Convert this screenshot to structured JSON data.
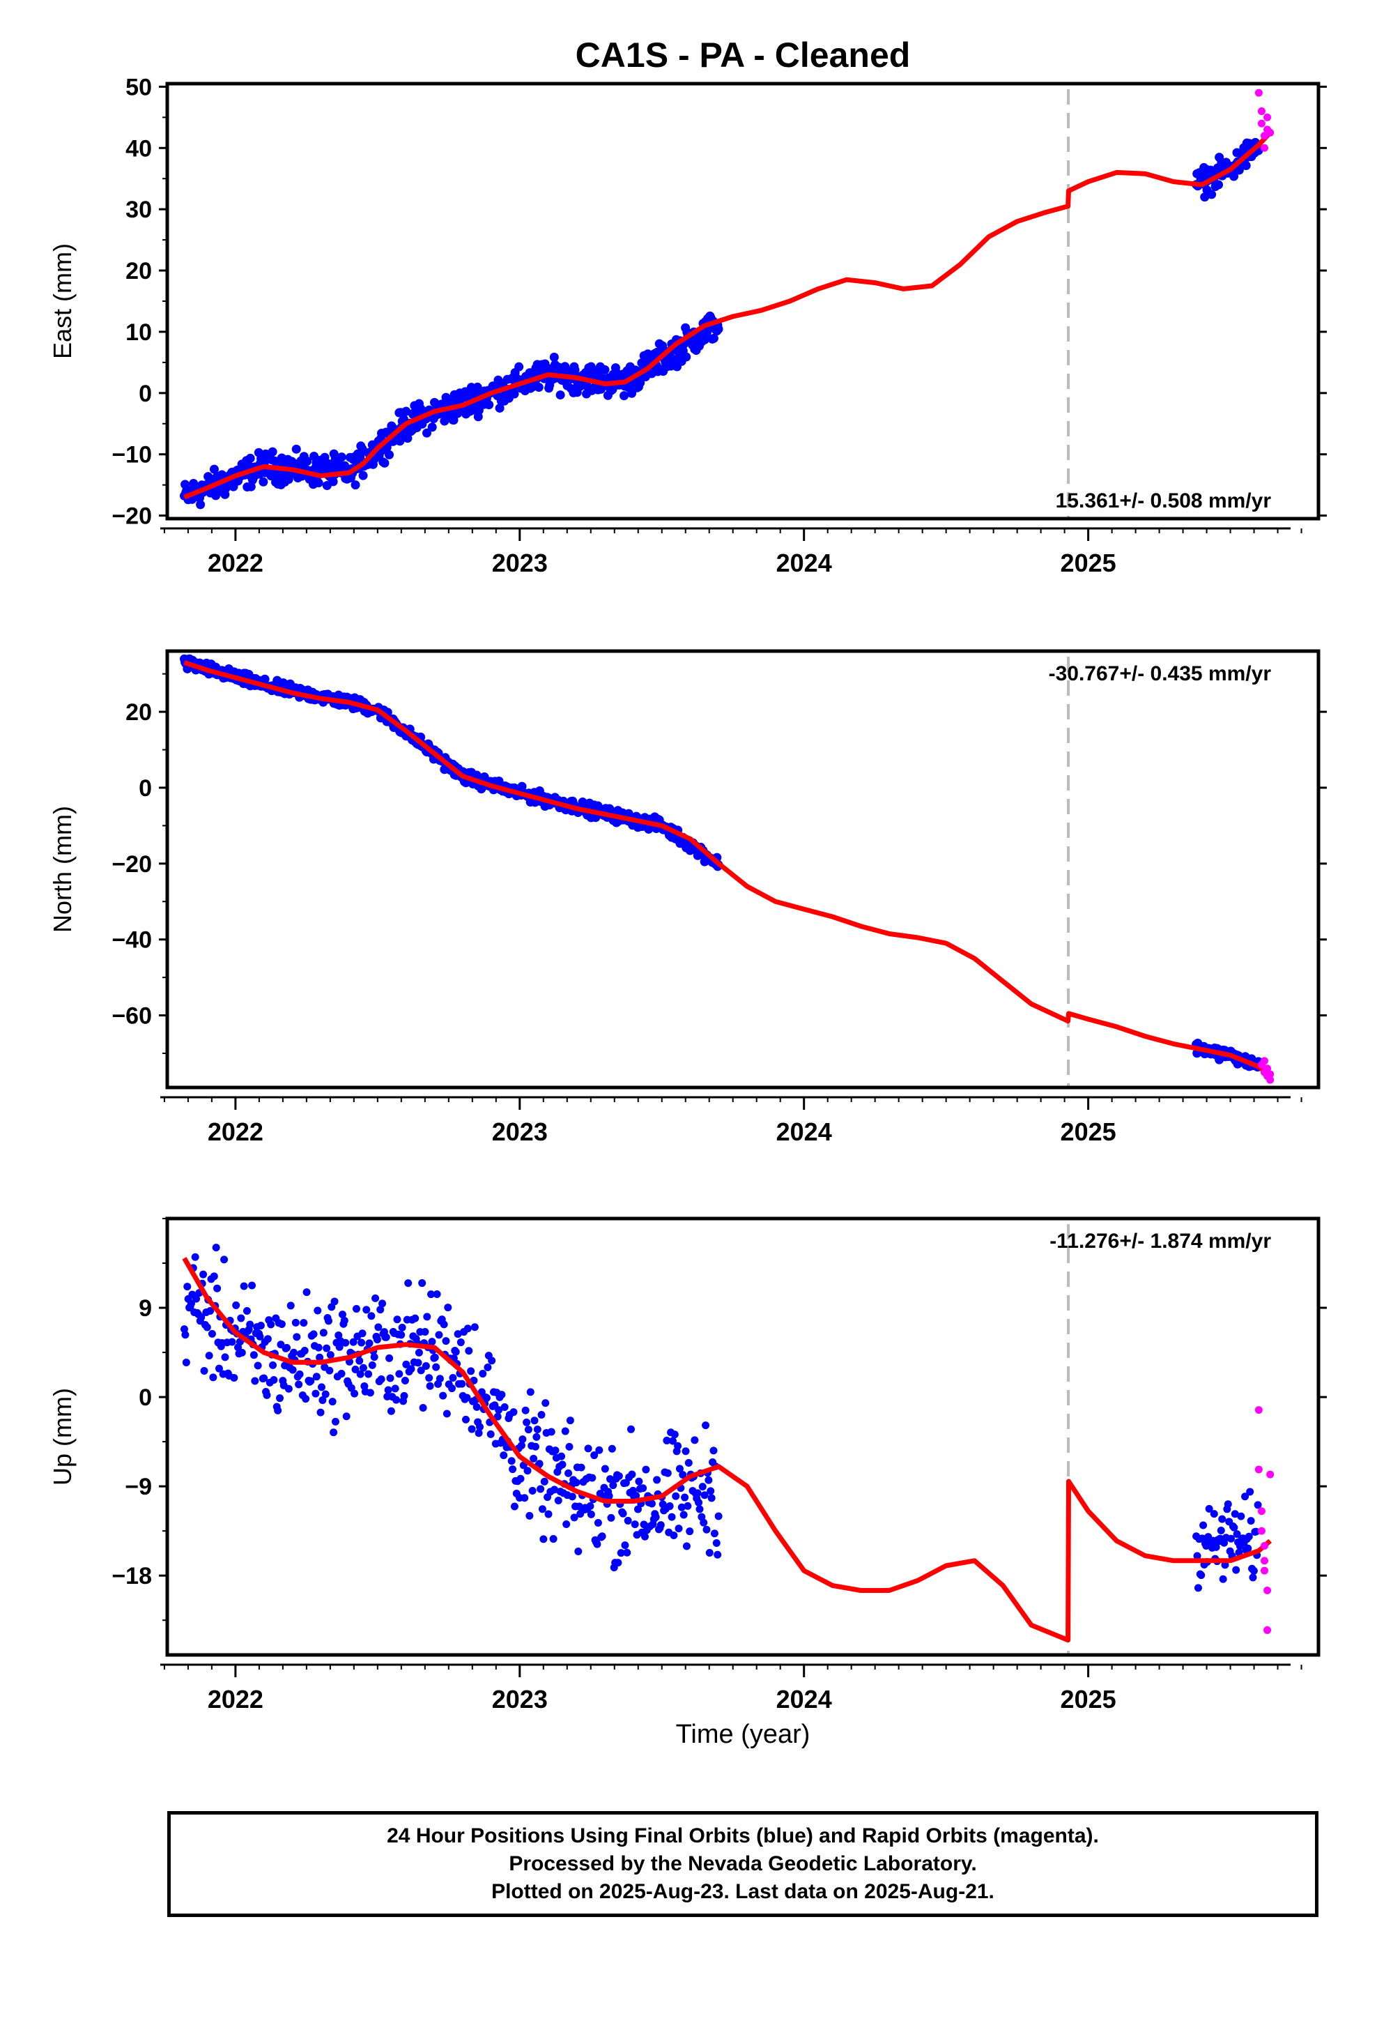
{
  "title": "CA1S  - PA - Cleaned",
  "colors": {
    "final": "#0000ff",
    "rapid": "#ff00ff",
    "model": "#ff0000",
    "event_line": "#bbbbbb"
  },
  "footer": {
    "line1": "24 Hour Positions Using Final Orbits (blue) and Rapid Orbits (magenta).",
    "line2": "Processed by the Nevada Geodetic Laboratory.",
    "line3": "Plotted on 2025-Aug-23. Last data on 2025-Aug-21."
  },
  "chart_data": [
    {
      "type": "scatter",
      "ylabel": "East (mm)",
      "xlabel": "",
      "xlim": [
        2021.76,
        2025.81
      ],
      "ylim": [
        -20.5,
        50.5
      ],
      "yticks": [
        -20,
        -10,
        0,
        10,
        20,
        30,
        40,
        50
      ],
      "xticks": [
        2022,
        2023,
        2024,
        2025
      ],
      "grid": false,
      "rate_label": "15.361+/- 0.508 mm/yr",
      "rate_label_position": "bottom-right",
      "event_line_x": 2024.93,
      "model": {
        "x": [
          2021.82,
          2021.9,
          2022.0,
          2022.1,
          2022.2,
          2022.3,
          2022.4,
          2022.45,
          2022.5,
          2022.6,
          2022.7,
          2022.8,
          2022.9,
          2023.0,
          2023.1,
          2023.2,
          2023.3,
          2023.37,
          2023.45,
          2023.55,
          2023.65,
          2023.75,
          2023.85,
          2023.95,
          2024.05,
          2024.15,
          2024.25,
          2024.35,
          2024.45,
          2024.55,
          2024.65,
          2024.75,
          2024.85,
          2024.929,
          2024.931,
          2025.0,
          2025.1,
          2025.2,
          2025.3,
          2025.4,
          2025.5,
          2025.6,
          2025.64
        ],
        "y": [
          -17,
          -15.5,
          -13.5,
          -12,
          -12.5,
          -13.5,
          -13,
          -11.5,
          -9,
          -5,
          -3,
          -2,
          0,
          1.5,
          3,
          2.5,
          1.5,
          1.8,
          4,
          8,
          11,
          12.5,
          13.5,
          15,
          17,
          18.5,
          18,
          17,
          17.5,
          21,
          25.5,
          28,
          29.5,
          30.5,
          33,
          34.5,
          36,
          35.8,
          34.5,
          34,
          36.5,
          40.5,
          42.5
        ]
      },
      "final_trend": {
        "x": [
          2021.82,
          2022.1,
          2022.4,
          2022.6,
          2022.9,
          2023.1,
          2023.37,
          2023.7
        ],
        "y": [
          -17,
          -12,
          -13,
          -5,
          0,
          3,
          1.8,
          11.5
        ],
        "spread": 2.0
      },
      "final_trend_2": {
        "x": [
          2025.38,
          2025.5,
          2025.6
        ],
        "y": [
          34,
          36.5,
          40.5
        ],
        "spread": 1.8
      },
      "rapid_points": [
        [
          2025.6,
          49
        ],
        [
          2025.61,
          46
        ],
        [
          2025.61,
          44
        ],
        [
          2025.62,
          42
        ],
        [
          2025.62,
          40
        ],
        [
          2025.63,
          43
        ],
        [
          2025.63,
          45
        ],
        [
          2025.64,
          42.5
        ]
      ]
    },
    {
      "type": "scatter",
      "ylabel": "North (mm)",
      "xlabel": "",
      "xlim": [
        2021.76,
        2025.81
      ],
      "ylim": [
        -79,
        36
      ],
      "yticks": [
        -60,
        -40,
        -20,
        0,
        20
      ],
      "xticks": [
        2022,
        2023,
        2024,
        2025
      ],
      "grid": false,
      "rate_label": "-30.767+/- 0.435 mm/yr",
      "rate_label_position": "top-right",
      "event_line_x": 2024.93,
      "model": {
        "x": [
          2021.82,
          2021.9,
          2022.0,
          2022.1,
          2022.2,
          2022.3,
          2022.4,
          2022.5,
          2022.6,
          2022.7,
          2022.8,
          2022.9,
          2023.0,
          2023.1,
          2023.2,
          2023.3,
          2023.4,
          2023.5,
          2023.6,
          2023.7,
          2023.8,
          2023.9,
          2024.0,
          2024.1,
          2024.2,
          2024.3,
          2024.4,
          2024.5,
          2024.6,
          2024.7,
          2024.8,
          2024.929,
          2024.931,
          2025.0,
          2025.1,
          2025.2,
          2025.3,
          2025.4,
          2025.5,
          2025.6,
          2025.64
        ],
        "y": [
          33,
          31,
          29,
          27,
          25,
          23.5,
          22.5,
          20.5,
          15,
          9,
          3,
          0.5,
          -1.5,
          -3.5,
          -5.5,
          -7,
          -8.5,
          -10,
          -13.5,
          -20,
          -26,
          -30,
          -32,
          -34,
          -36.5,
          -38.5,
          -39.5,
          -41,
          -45,
          -51,
          -57,
          -61.5,
          -59.5,
          -61,
          -63,
          -65.5,
          -67.5,
          -69,
          -70.5,
          -73.5,
          -76
        ]
      },
      "final_trend": {
        "x": [
          2021.82,
          2022.1,
          2022.4,
          2022.5,
          2022.8,
          2023.0,
          2023.4,
          2023.5,
          2023.7
        ],
        "y": [
          33,
          27,
          22.5,
          20.5,
          3,
          -1.5,
          -8.5,
          -10,
          -20
        ],
        "spread": 1.3
      },
      "final_trend_2": {
        "x": [
          2025.38,
          2025.5,
          2025.6
        ],
        "y": [
          -68.5,
          -70.5,
          -73.5
        ],
        "spread": 1.2
      },
      "rapid_points": [
        [
          2025.61,
          -73
        ],
        [
          2025.62,
          -75
        ],
        [
          2025.62,
          -72
        ],
        [
          2025.63,
          -74
        ],
        [
          2025.63,
          -76
        ],
        [
          2025.64,
          -75.5
        ],
        [
          2025.64,
          -77
        ]
      ]
    },
    {
      "type": "scatter",
      "ylabel": "Up (mm)",
      "xlabel": "Time (year)",
      "xlim": [
        2021.76,
        2025.81
      ],
      "ylim": [
        -26,
        18
      ],
      "yticks": [
        -18,
        -9,
        0,
        9
      ],
      "xticks": [
        2022,
        2023,
        2024,
        2025
      ],
      "grid": false,
      "rate_label": "-11.276+/- 1.874 mm/yr",
      "rate_label_position": "top-right",
      "event_line_x": 2024.93,
      "model": {
        "x": [
          2021.82,
          2021.9,
          2022.0,
          2022.1,
          2022.2,
          2022.3,
          2022.4,
          2022.5,
          2022.6,
          2022.7,
          2022.8,
          2022.9,
          2023.0,
          2023.1,
          2023.2,
          2023.3,
          2023.4,
          2023.5,
          2023.6,
          2023.7,
          2023.8,
          2023.9,
          2024.0,
          2024.1,
          2024.2,
          2024.3,
          2024.4,
          2024.5,
          2024.6,
          2024.7,
          2024.8,
          2024.929,
          2024.931,
          2025.0,
          2025.1,
          2025.2,
          2025.3,
          2025.4,
          2025.5,
          2025.6,
          2025.64
        ],
        "y": [
          14,
          10,
          6.5,
          4.5,
          3.5,
          3.5,
          4,
          5,
          5.3,
          5,
          2.5,
          -2,
          -6,
          -8,
          -9.5,
          -10.5,
          -10.5,
          -10,
          -8,
          -7,
          -9,
          -13.5,
          -17.5,
          -19,
          -19.5,
          -19.5,
          -18.5,
          -17,
          -16.5,
          -19,
          -23,
          -24.5,
          -8.5,
          -11.5,
          -14.5,
          -16,
          -16.5,
          -16.5,
          -16.5,
          -15.5,
          -14.5
        ]
      },
      "final_trend": {
        "x": [
          2021.82,
          2022.1,
          2022.4,
          2022.7,
          2022.8,
          2023.0,
          2023.2,
          2023.5,
          2023.7
        ],
        "y": [
          10,
          4,
          4,
          5,
          4,
          -6,
          -10,
          -10.5,
          -9
        ],
        "spread": 5.0
      },
      "final_trend_2": {
        "x": [
          2025.38,
          2025.5,
          2025.6
        ],
        "y": [
          -15.5,
          -14.5,
          -14.5
        ],
        "spread": 3.5
      },
      "rapid_points": [
        [
          2025.6,
          -1.3
        ],
        [
          2025.6,
          -7.3
        ],
        [
          2025.61,
          -11.5
        ],
        [
          2025.61,
          -13.5
        ],
        [
          2025.62,
          -15
        ],
        [
          2025.62,
          -16.5
        ],
        [
          2025.62,
          -17.5
        ],
        [
          2025.63,
          -19.5
        ],
        [
          2025.63,
          -23.5
        ],
        [
          2025.64,
          -7.8
        ]
      ]
    }
  ]
}
